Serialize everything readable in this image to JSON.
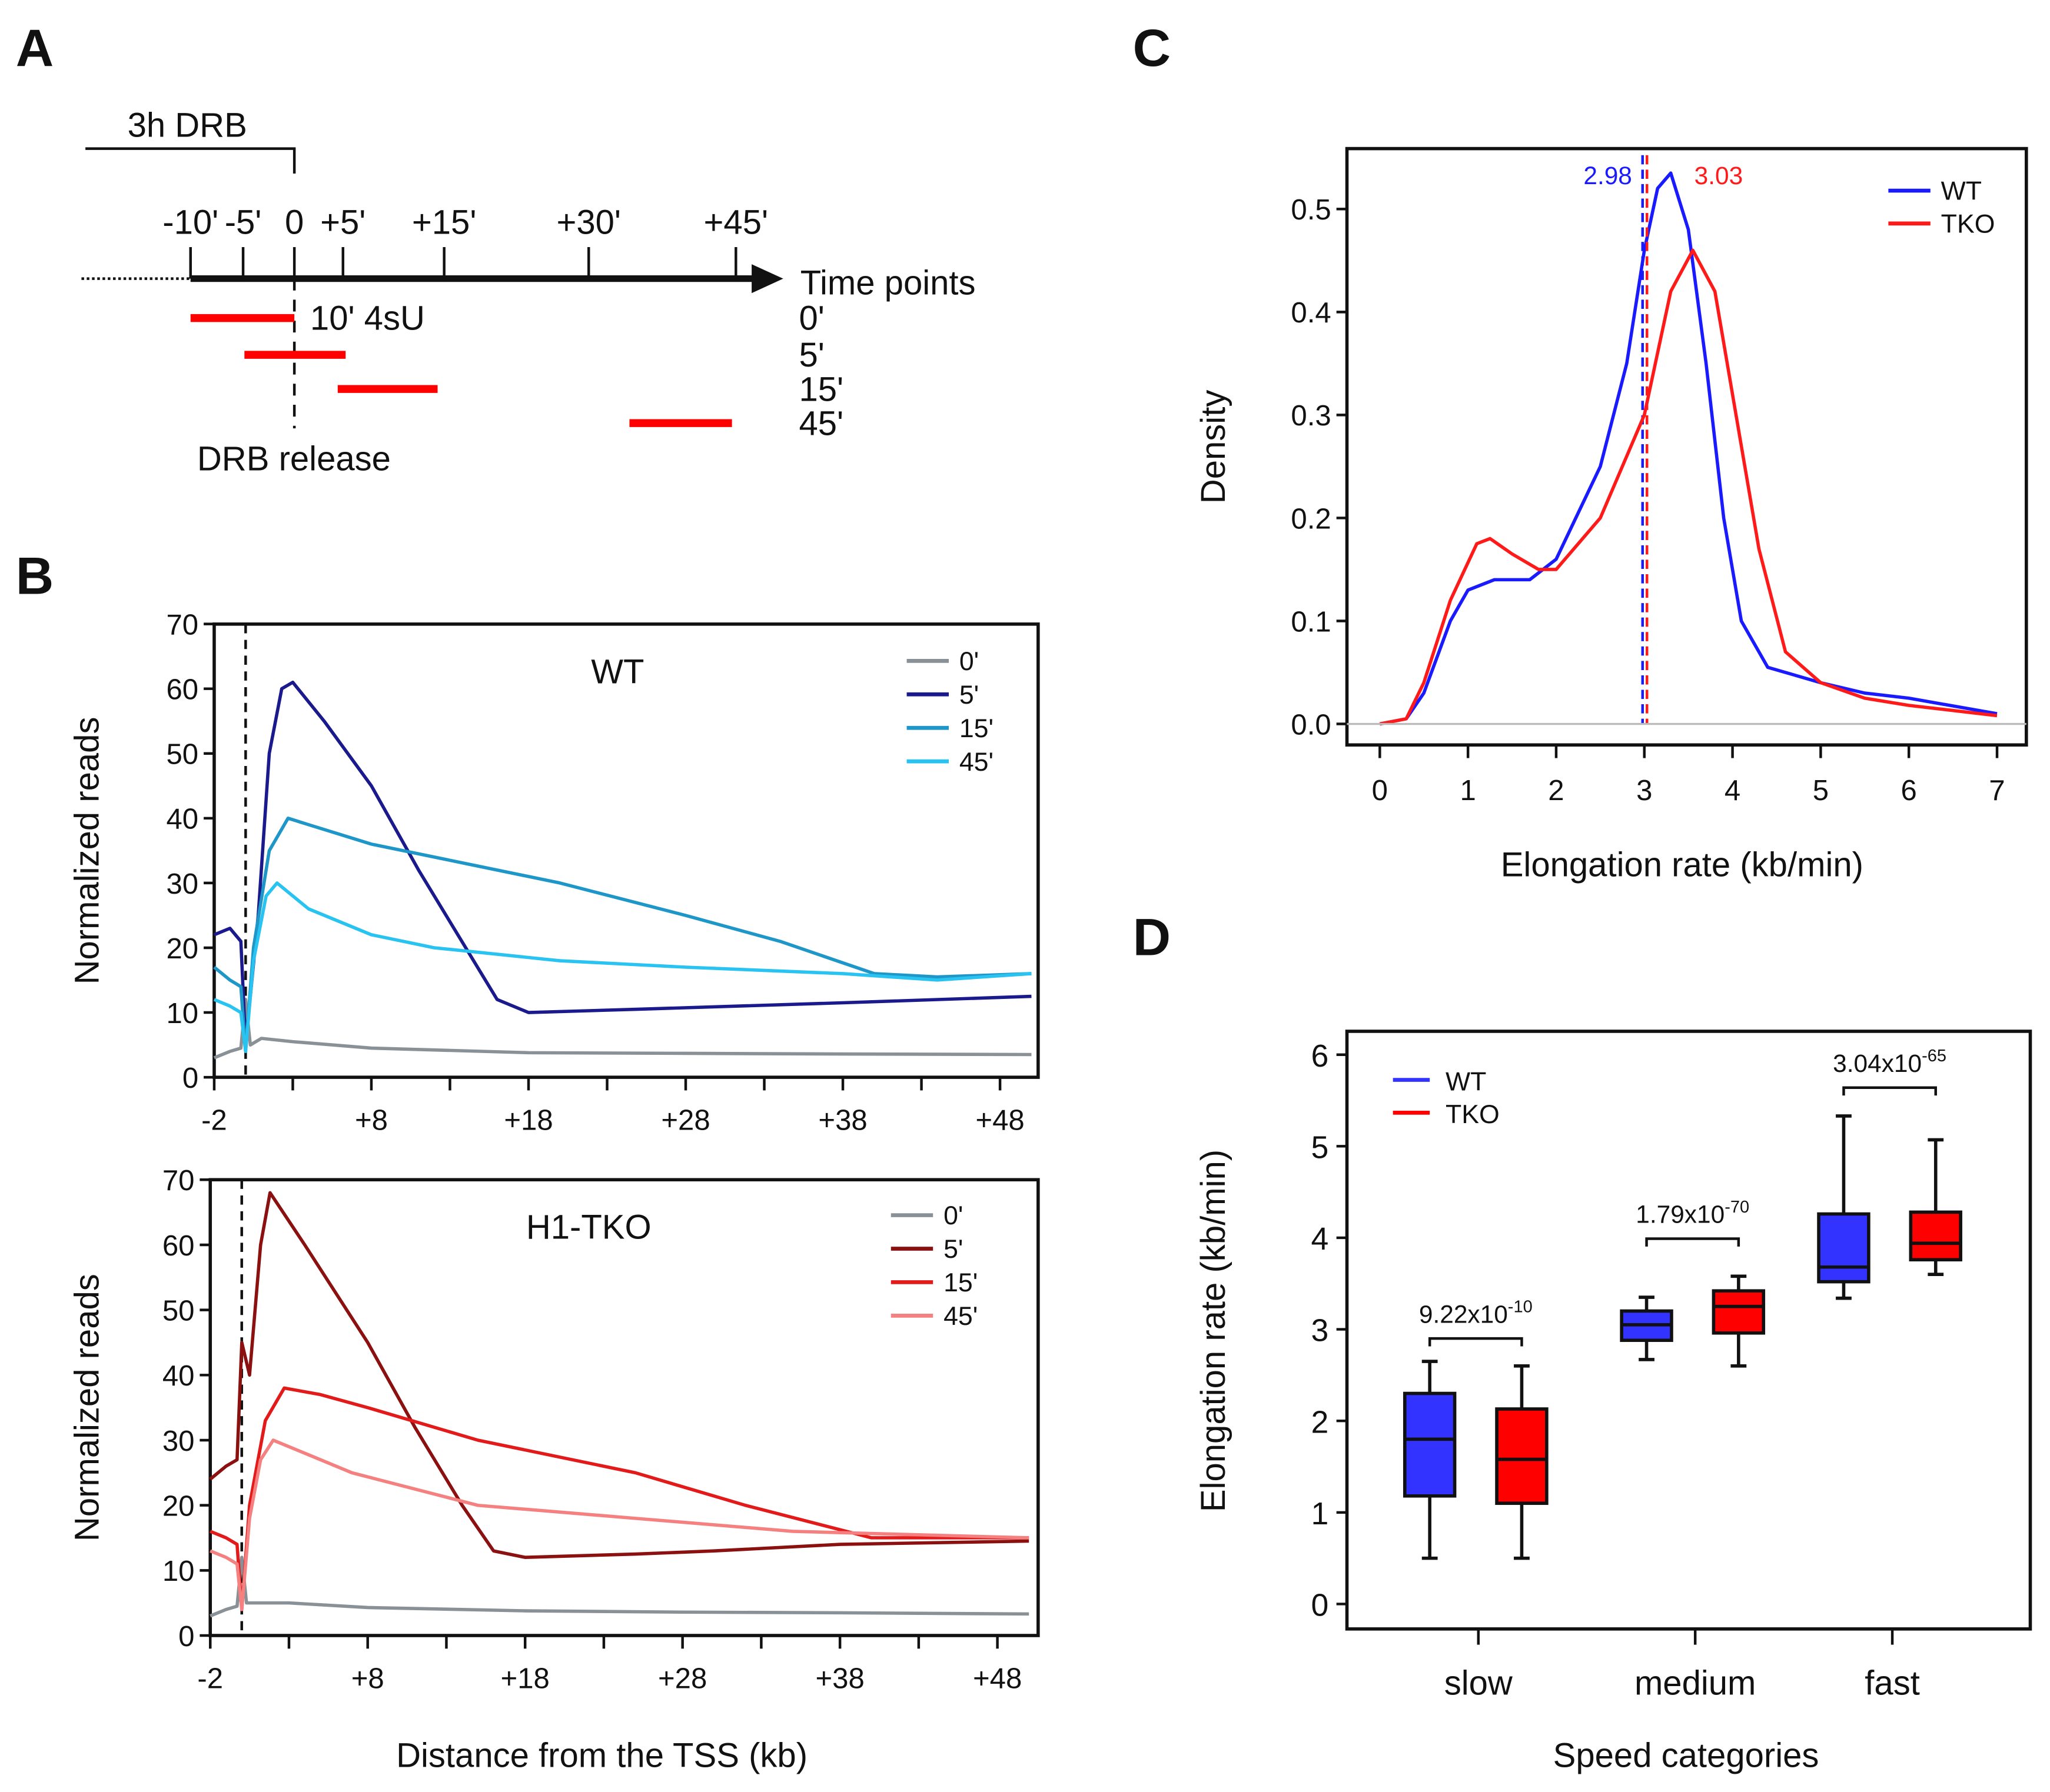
{
  "panels": {
    "a": "A",
    "b": "B",
    "c": "C",
    "d": "D"
  },
  "diagram": {
    "treatment_label": "3h DRB",
    "time_ticks": [
      "-10'",
      "-5'",
      "0",
      "+5'",
      "+15'",
      "+30'",
      "+45'"
    ],
    "axis_label": "Time points",
    "labeling_label": "10' 4sU",
    "release_label": "DRB release",
    "time_points": [
      "0'",
      "5'",
      "15'",
      "45'"
    ],
    "bar_color": "#ff0000"
  },
  "chart_data": [
    {
      "type": "line",
      "title": "WT",
      "xlabel": "Distance from the TSS (kb)",
      "ylabel": "Normalized reads",
      "xticks": [
        "-2",
        "+8",
        "+18",
        "+28",
        "+38",
        "+48"
      ],
      "yticks": [
        "0",
        "10",
        "20",
        "30",
        "40",
        "50",
        "60",
        "70"
      ],
      "xlim": [
        -2,
        50.5
      ],
      "ylim": [
        0,
        70
      ],
      "legend": "top-right",
      "vline_x": 0,
      "series": [
        {
          "name": "0'",
          "color": "#8a9196",
          "x": [
            -2,
            -1,
            -0.3,
            0,
            0.3,
            1,
            3,
            8,
            18,
            28,
            38,
            50
          ],
          "y": [
            3,
            4,
            4.5,
            12,
            5,
            6,
            5.5,
            4.5,
            3.8,
            3.7,
            3.6,
            3.5
          ]
        },
        {
          "name": "5'",
          "color": "#1a1a8c",
          "x": [
            -2,
            -1,
            -0.3,
            0,
            0.8,
            1.5,
            2.3,
            3,
            5,
            8,
            11,
            14,
            16,
            18,
            25,
            38,
            50
          ],
          "y": [
            22,
            23,
            21,
            5,
            25,
            50,
            60,
            61,
            55,
            45,
            32,
            20,
            12,
            10,
            10.5,
            11.5,
            12.5
          ]
        },
        {
          "name": "15'",
          "color": "#1e96c8",
          "x": [
            -2,
            -1,
            -0.3,
            0,
            0.5,
            1.5,
            2.7,
            4,
            8,
            14,
            20,
            28,
            34,
            40,
            44,
            50
          ],
          "y": [
            17,
            15,
            14,
            4,
            20,
            35,
            40,
            39,
            36,
            33,
            30,
            25,
            21,
            16,
            15.5,
            16
          ]
        },
        {
          "name": "45'",
          "color": "#28c3f0",
          "x": [
            -2,
            -1,
            -0.3,
            0,
            0.5,
            1.3,
            2,
            4,
            8,
            12,
            20,
            28,
            38,
            44,
            50
          ],
          "y": [
            12,
            11,
            10,
            4,
            18,
            28,
            30,
            26,
            22,
            20,
            18,
            17,
            16,
            15,
            16
          ]
        }
      ]
    },
    {
      "type": "line",
      "title": "H1-TKO",
      "xlabel": "Distance from the TSS (kb)",
      "ylabel": "Normalized reads",
      "xticks": [
        "-2",
        "+8",
        "+18",
        "+28",
        "+38",
        "+48"
      ],
      "yticks": [
        "0",
        "10",
        "20",
        "30",
        "40",
        "50",
        "60",
        "70"
      ],
      "xlim": [
        -2,
        50.5
      ],
      "ylim": [
        0,
        70
      ],
      "legend": "top-right",
      "vline_x": 0,
      "series": [
        {
          "name": "0'",
          "color": "#8a9196",
          "x": [
            -2,
            -1,
            -0.3,
            0,
            0.3,
            1,
            3,
            8,
            18,
            28,
            38,
            50
          ],
          "y": [
            3,
            4,
            4.5,
            12,
            5,
            5,
            5,
            4.3,
            3.8,
            3.6,
            3.5,
            3.3
          ]
        },
        {
          "name": "5'",
          "color": "#8b1010",
          "x": [
            -2,
            -1,
            -0.3,
            0,
            0.5,
            1.2,
            1.8,
            4,
            8,
            11,
            14,
            16,
            18,
            25,
            30,
            38,
            50
          ],
          "y": [
            24,
            26,
            27,
            45,
            40,
            60,
            68,
            60,
            45,
            32,
            20,
            13,
            12,
            12.5,
            13,
            14,
            14.5
          ]
        },
        {
          "name": "15'",
          "color": "#e31a1a",
          "x": [
            -2,
            -1,
            -0.3,
            0,
            0.5,
            1.5,
            2.7,
            5,
            8,
            15,
            25,
            32,
            40,
            50
          ],
          "y": [
            16,
            15,
            14,
            4,
            20,
            33,
            38,
            37,
            35,
            30,
            25,
            20,
            15,
            15
          ]
        },
        {
          "name": "45'",
          "color": "#f58080",
          "x": [
            -2,
            -1,
            -0.3,
            0,
            0.5,
            1.2,
            2,
            4,
            7,
            15,
            25,
            35,
            50
          ],
          "y": [
            13,
            12,
            11,
            4,
            18,
            27,
            30,
            28,
            25,
            20,
            18,
            16,
            15
          ]
        }
      ]
    },
    {
      "type": "line",
      "xlabel": "Elongation rate (kb/min)",
      "ylabel": "Density",
      "xticks": [
        "0",
        "1",
        "2",
        "3",
        "4",
        "5",
        "6",
        "7"
      ],
      "yticks": [
        "0.0",
        "0.1",
        "0.2",
        "0.3",
        "0.4",
        "0.5"
      ],
      "xlim": [
        -0.2,
        7.1
      ],
      "ylim": [
        -0.02,
        0.56
      ],
      "legend": "top-right",
      "series": [
        {
          "name": "WT",
          "color": "#1a1aff",
          "median": 2.98,
          "median_label": "2.98",
          "x": [
            0,
            0.3,
            0.5,
            0.8,
            1,
            1.3,
            1.7,
            2,
            2.5,
            2.8,
            3,
            3.15,
            3.3,
            3.5,
            3.7,
            3.9,
            4.1,
            4.4,
            5,
            5.5,
            6,
            7
          ],
          "y": [
            0,
            0.005,
            0.03,
            0.1,
            0.13,
            0.14,
            0.14,
            0.16,
            0.25,
            0.35,
            0.46,
            0.52,
            0.535,
            0.48,
            0.35,
            0.2,
            0.1,
            0.055,
            0.04,
            0.03,
            0.025,
            0.01
          ]
        },
        {
          "name": "TKO",
          "color": "#ff1a1a",
          "median": 3.03,
          "median_label": "3.03",
          "x": [
            0,
            0.3,
            0.5,
            0.8,
            1.1,
            1.25,
            1.5,
            1.8,
            2,
            2.5,
            3,
            3.3,
            3.55,
            3.8,
            4,
            4.3,
            4.6,
            5,
            5.5,
            6,
            7
          ],
          "y": [
            0,
            0.005,
            0.04,
            0.12,
            0.175,
            0.18,
            0.165,
            0.15,
            0.15,
            0.2,
            0.3,
            0.42,
            0.46,
            0.42,
            0.32,
            0.17,
            0.07,
            0.04,
            0.025,
            0.018,
            0.008
          ]
        }
      ]
    },
    {
      "type": "box",
      "xlabel": "Speed categories",
      "ylabel": "Elongation rate (kb/min)",
      "categories": [
        "slow",
        "medium",
        "fast"
      ],
      "yticks": [
        "0",
        "1",
        "2",
        "3",
        "4",
        "5",
        "6"
      ],
      "ylim": [
        -0.3,
        6.25
      ],
      "legend": "top-left",
      "series": [
        {
          "name": "WT",
          "color": "#3333ff",
          "boxes": [
            {
              "min": 0.5,
              "q1": 1.18,
              "median": 1.8,
              "q3": 2.3,
              "max": 2.65
            },
            {
              "min": 2.67,
              "q1": 2.88,
              "median": 3.05,
              "q3": 3.2,
              "max": 3.35
            },
            {
              "min": 3.34,
              "q1": 3.52,
              "median": 3.68,
              "q3": 4.26,
              "max": 5.33
            }
          ]
        },
        {
          "name": "TKO",
          "color": "#ff0000",
          "boxes": [
            {
              "min": 0.5,
              "q1": 1.1,
              "median": 1.58,
              "q3": 2.13,
              "max": 2.6
            },
            {
              "min": 2.6,
              "q1": 2.96,
              "median": 3.25,
              "q3": 3.42,
              "max": 3.58
            },
            {
              "min": 3.6,
              "q1": 3.76,
              "median": 3.94,
              "q3": 4.28,
              "max": 5.07
            }
          ]
        }
      ],
      "pvalues": [
        {
          "base": "9.22x10",
          "exp": "-10",
          "y": 2.9
        },
        {
          "base": "1.79x10",
          "exp": "-70",
          "y": 3.99
        },
        {
          "base": "3.04x10",
          "exp": "-65",
          "y": 5.64
        }
      ]
    }
  ]
}
